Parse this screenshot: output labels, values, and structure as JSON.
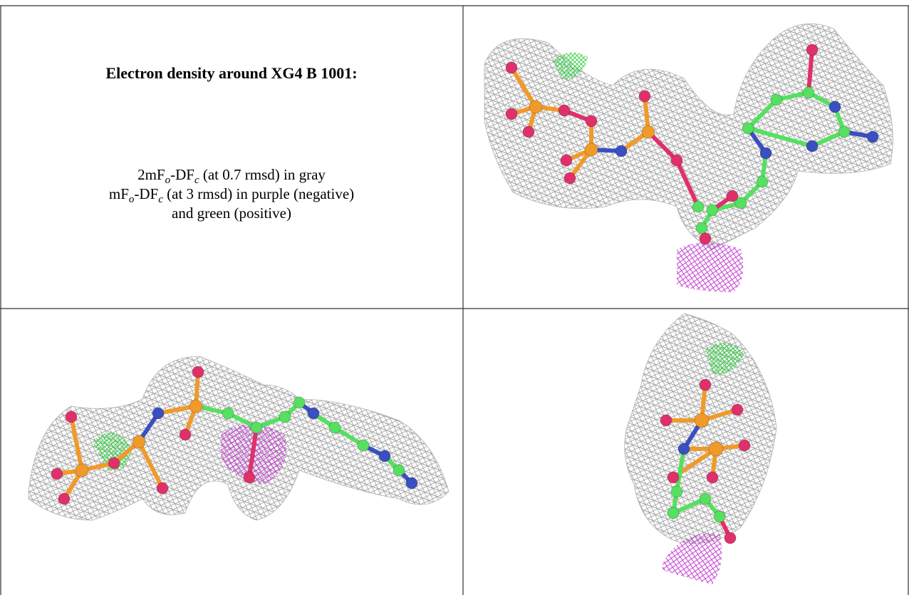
{
  "header": {
    "title": "Electron density around XG4 B 1001:"
  },
  "legend": {
    "lines": [
      {
        "parts": [
          "2mF",
          "o",
          "-DF",
          "c",
          " (at 0.7 rmsd) in gray"
        ]
      },
      {
        "parts": [
          "mF",
          "o",
          "-DF",
          "c",
          " (at 3 rmsd) in purple (negative)"
        ]
      },
      {
        "parts": [
          "and green (positive)"
        ]
      }
    ]
  }
}
